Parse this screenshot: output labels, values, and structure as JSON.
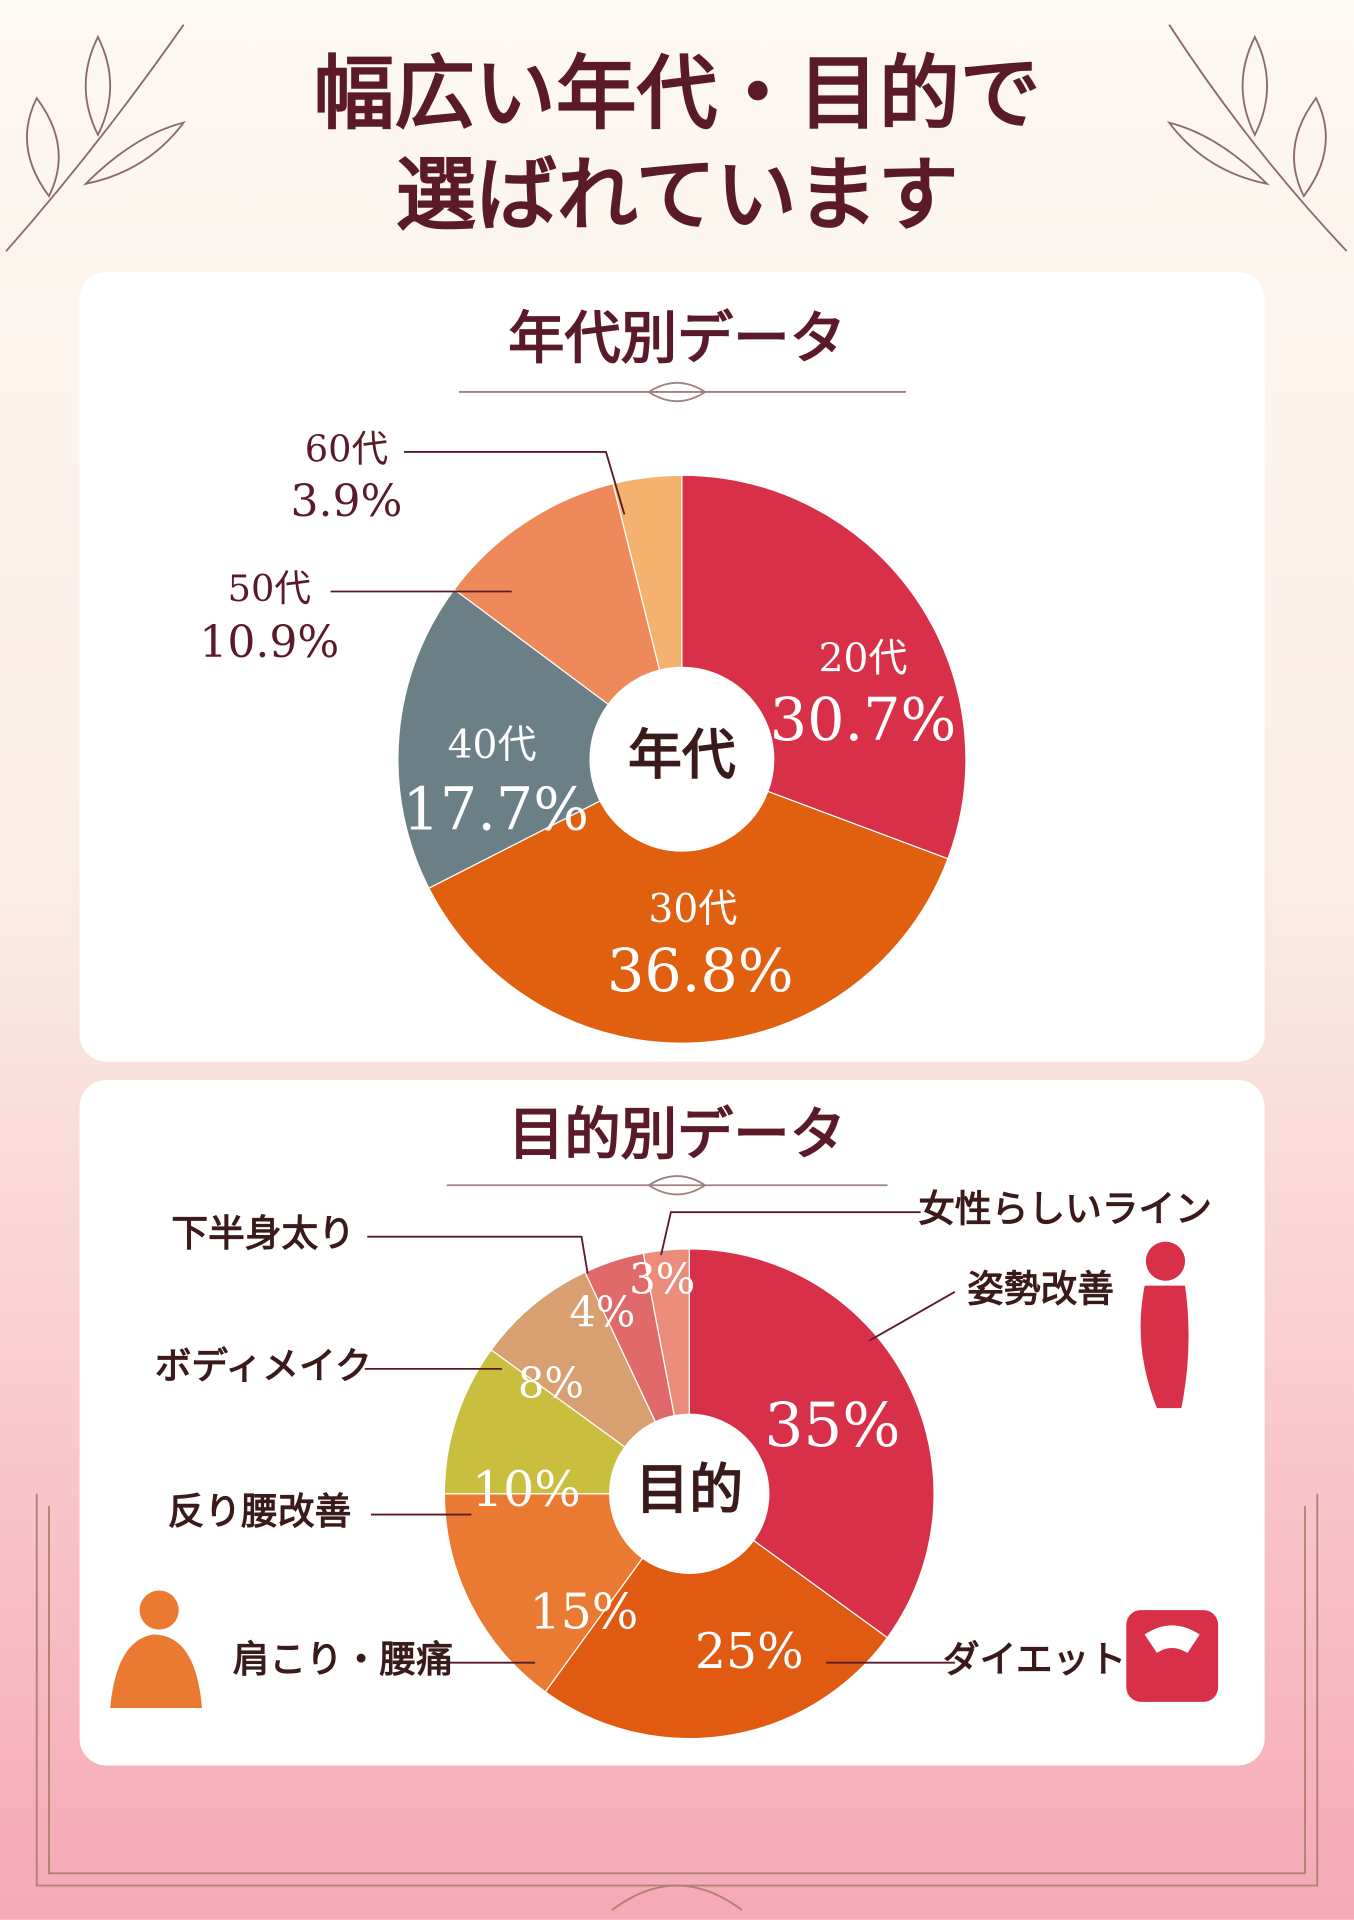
{
  "header": {
    "title_lines": [
      "幅広い年代・目的で",
      "選ばれています"
    ]
  },
  "chart_data": [
    {
      "type": "pie",
      "title": "年代別データ",
      "center_label": "年代",
      "categories": [
        "20代",
        "30代",
        "40代",
        "50代",
        "60代"
      ],
      "values": [
        30.7,
        36.8,
        17.7,
        10.9,
        3.9
      ],
      "value_labels": [
        "30.7%",
        "36.8%",
        "17.7%",
        "10.9%",
        "3.9%"
      ],
      "colors": [
        "#d9304a",
        "#e0600f",
        "#6b7f86",
        "#ee8a5a",
        "#f4b26e"
      ]
    },
    {
      "type": "pie",
      "title": "目的別データ",
      "center_label": "目的",
      "categories": [
        "姿勢改善",
        "ダイエット",
        "肩こり・腰痛",
        "反り腰改善",
        "ボディメイク",
        "下半身太り",
        "女性らしいライン"
      ],
      "values": [
        35,
        25,
        15,
        10,
        8,
        4,
        3
      ],
      "value_labels": [
        "35%",
        "25%",
        "15%",
        "10%",
        "8%",
        "4%",
        "3%"
      ],
      "colors": [
        "#d9304a",
        "#e05a12",
        "#ea7a32",
        "#c9be3d",
        "#d8a070",
        "#e06a6a",
        "#eb8d7a"
      ]
    }
  ]
}
